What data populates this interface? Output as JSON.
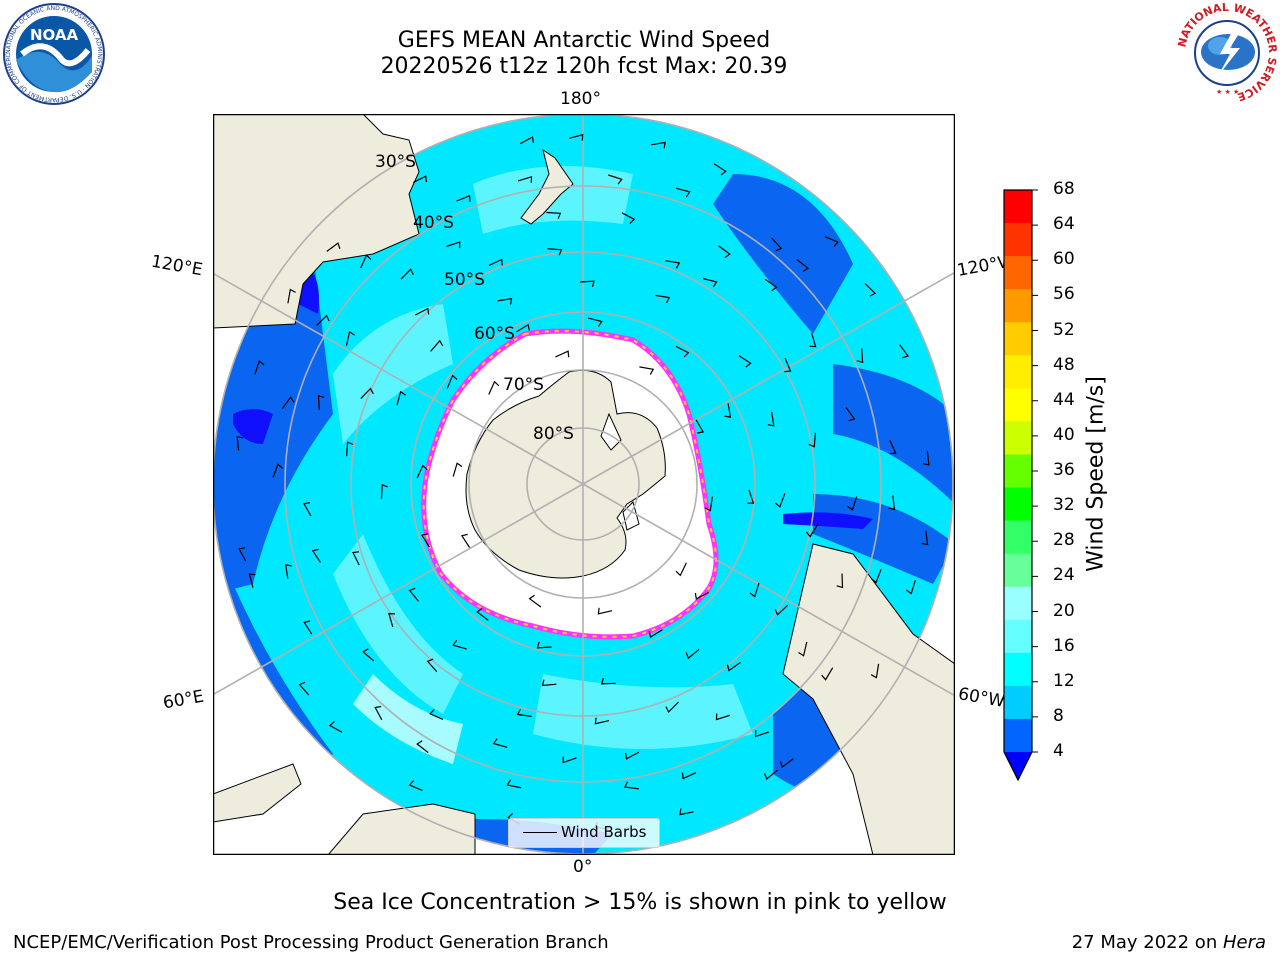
{
  "header": {
    "title_line1": "GEFS MEAN Antarctic Wind Speed",
    "title_line2": "20220526 t12z 120h fcst   Max: 20.39"
  },
  "logos": {
    "left": "noaa-logo",
    "left_text": "NOAA",
    "left_ring_text": "NATIONAL OCEANIC AND ATMOSPHERIC ADMINISTRATION · U.S. DEPARTMENT OF COMMERCE",
    "right": "nws-logo",
    "right_ring_text": "NATIONAL WEATHER SERVICE"
  },
  "map": {
    "projection": "south-polar-stereographic",
    "longitude_labels": {
      "top": "180°",
      "bottom": "0°",
      "upper_left": "120°E",
      "upper_right": "120°W",
      "lower_left": "60°E",
      "lower_right": "60°W"
    },
    "latitude_labels": [
      "30°S",
      "40°S",
      "50°S",
      "60°S",
      "70°S",
      "80°S"
    ],
    "legend_label": "Wind Barbs",
    "colors": {
      "land": "#eeecdc",
      "ice": "#ffffff",
      "grid": "#b0b0b0",
      "ice_edge": [
        "#ff33ff",
        "#ff99cc",
        "#ffcc33"
      ]
    }
  },
  "colorbar": {
    "label": "Wind Speed [m/s]",
    "ticks": [
      "4",
      "8",
      "12",
      "16",
      "20",
      "24",
      "28",
      "32",
      "36",
      "40",
      "44",
      "48",
      "52",
      "56",
      "60",
      "64",
      "68"
    ],
    "colors": [
      "#0000ff",
      "#0066ff",
      "#00ccff",
      "#00ffff",
      "#66ffff",
      "#99ffff",
      "#66ff99",
      "#33ff66",
      "#00ff00",
      "#66ff00",
      "#ccff00",
      "#ffff00",
      "#ffee00",
      "#ffcc00",
      "#ff9900",
      "#ff6600",
      "#ff3300",
      "#ff0000"
    ]
  },
  "footer": {
    "subtitle": "Sea Ice Concentration > 15% is shown in pink to yellow",
    "credit_left": "NCEP/EMC/Verification Post Processing Product Generation Branch",
    "credit_right_date": "27 May 2022 on ",
    "credit_right_machine": "Hera"
  }
}
